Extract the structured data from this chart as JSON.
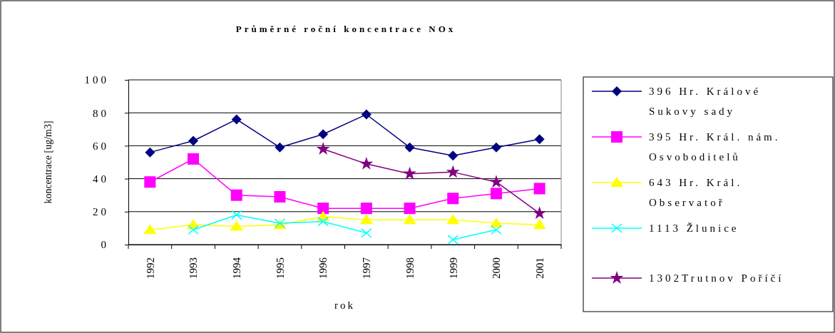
{
  "chart_data": {
    "type": "line",
    "title": "Průměrné roční koncentrace NOx",
    "xlabel": "rok",
    "ylabel": "koncentrace [ug/m3]",
    "categories": [
      "1992",
      "1993",
      "1994",
      "1995",
      "1996",
      "1997",
      "1998",
      "1999",
      "2000",
      "2001"
    ],
    "ylim": [
      0,
      100
    ],
    "yticks": [
      0,
      20,
      40,
      60,
      80,
      100
    ],
    "grid": "y",
    "legend": "right",
    "series": [
      {
        "name": "396 Hr. Králové Sukovy sady",
        "color": "#000080",
        "marker": "diamond",
        "values": [
          56,
          63,
          76,
          59,
          67,
          79,
          59,
          54,
          59,
          64
        ]
      },
      {
        "name": "395 Hr. Král. nám. Osvoboditelů",
        "color": "#ff00ff",
        "marker": "square",
        "values": [
          38,
          52,
          30,
          29,
          22,
          22,
          22,
          28,
          31,
          34
        ]
      },
      {
        "name": "643 Hr. Král. Observatoř",
        "color": "#ffff00",
        "marker": "triangle",
        "values": [
          9,
          12,
          11,
          12,
          17,
          15,
          15,
          15,
          13,
          12
        ]
      },
      {
        "name": "1113 Žlunice",
        "color": "#00ffff",
        "marker": "cross",
        "values": [
          null,
          9,
          18,
          13,
          14,
          7,
          null,
          3,
          9,
          null
        ]
      },
      {
        "name": "1302Trutnov Poříčí",
        "color": "#800080",
        "marker": "star",
        "values": [
          null,
          null,
          null,
          null,
          58,
          49,
          43,
          44,
          38,
          19
        ]
      }
    ]
  }
}
